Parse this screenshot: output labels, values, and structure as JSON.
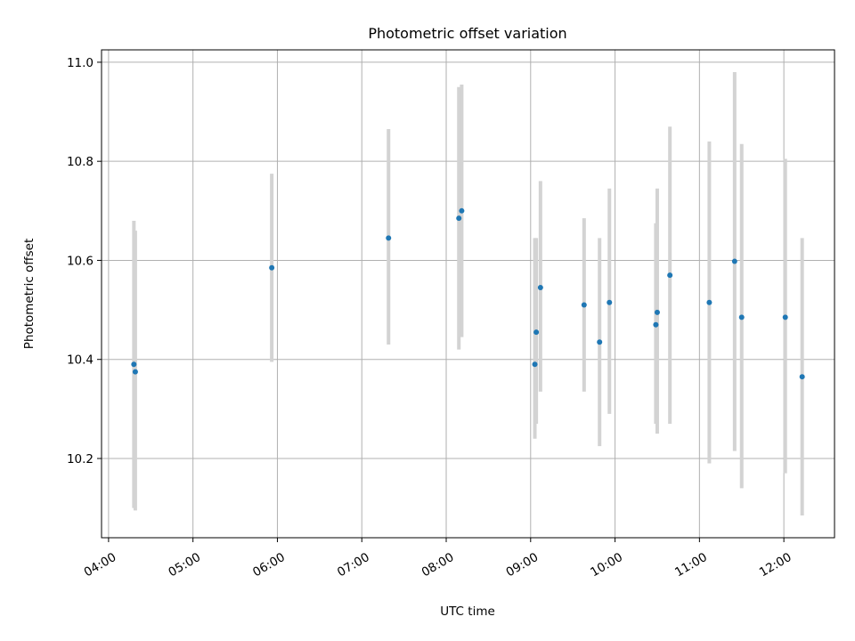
{
  "chart_data": {
    "type": "scatter",
    "title": "Photometric offset variation",
    "xlabel": "UTC time",
    "ylabel": "Photometric offset",
    "x_unit": "UTC time (HH:MM)",
    "xlim": [
      "03:55",
      "12:36"
    ],
    "ylim": [
      10.04,
      11.025
    ],
    "grid": true,
    "x_ticks": [
      "04:00",
      "05:00",
      "06:00",
      "07:00",
      "08:00",
      "09:00",
      "10:00",
      "11:00",
      "12:00"
    ],
    "y_ticks": [
      10.2,
      10.4,
      10.6,
      10.8,
      11.0
    ],
    "y_tick_labels": [
      "10.2",
      "10.4",
      "10.6",
      "10.8",
      "11.0"
    ],
    "marker_color": "#1f77b4",
    "errorbar_color": "#d3d3d3",
    "points": [
      {
        "x": "04:18",
        "y": 10.39,
        "low": 10.1,
        "high": 10.68
      },
      {
        "x": "04:19",
        "y": 10.375,
        "low": 10.095,
        "high": 10.66
      },
      {
        "x": "05:56",
        "y": 10.585,
        "low": 10.395,
        "high": 10.775
      },
      {
        "x": "07:19",
        "y": 10.645,
        "low": 10.43,
        "high": 10.865
      },
      {
        "x": "08:09",
        "y": 10.685,
        "low": 10.42,
        "high": 10.95
      },
      {
        "x": "08:11",
        "y": 10.7,
        "low": 10.445,
        "high": 10.955
      },
      {
        "x": "09:03",
        "y": 10.39,
        "low": 10.24,
        "high": 10.645
      },
      {
        "x": "09:04",
        "y": 10.455,
        "low": 10.27,
        "high": 10.645
      },
      {
        "x": "09:07",
        "y": 10.545,
        "low": 10.335,
        "high": 10.76
      },
      {
        "x": "09:38",
        "y": 10.51,
        "low": 10.335,
        "high": 10.685
      },
      {
        "x": "09:49",
        "y": 10.435,
        "low": 10.225,
        "high": 10.645
      },
      {
        "x": "09:56",
        "y": 10.515,
        "low": 10.29,
        "high": 10.745
      },
      {
        "x": "10:29",
        "y": 10.47,
        "low": 10.27,
        "high": 10.675
      },
      {
        "x": "10:30",
        "y": 10.495,
        "low": 10.25,
        "high": 10.745
      },
      {
        "x": "10:39",
        "y": 10.57,
        "low": 10.27,
        "high": 10.87
      },
      {
        "x": "11:07",
        "y": 10.515,
        "low": 10.19,
        "high": 10.84
      },
      {
        "x": "11:25",
        "y": 10.598,
        "low": 10.215,
        "high": 10.98
      },
      {
        "x": "11:30",
        "y": 10.485,
        "low": 10.14,
        "high": 10.835
      },
      {
        "x": "12:01",
        "y": 10.485,
        "low": 10.17,
        "high": 10.805
      },
      {
        "x": "12:13",
        "y": 10.365,
        "low": 10.085,
        "high": 10.645
      }
    ]
  }
}
